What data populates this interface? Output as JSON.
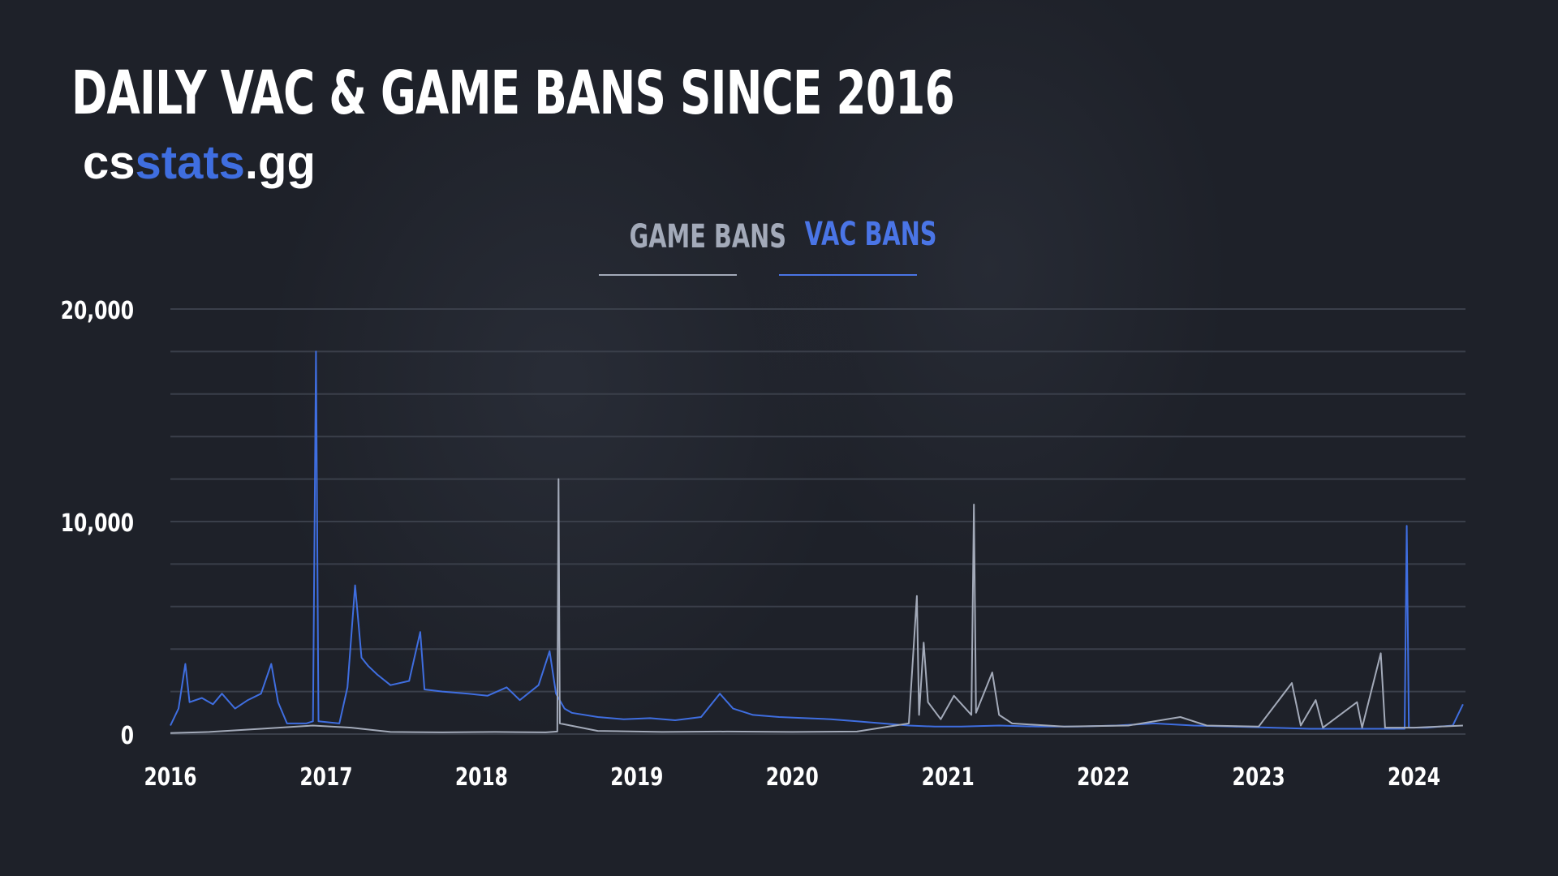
{
  "header": {
    "title": "DAILY VAC & GAME BANS SINCE 2016",
    "brand_prefix": "cs",
    "brand_accent": "stats",
    "brand_suffix": ".gg"
  },
  "tabs": [
    {
      "label": "GAME BANS",
      "active": false
    },
    {
      "label": "VAC BANS",
      "active": true
    }
  ],
  "colors": {
    "background": "#1e2129",
    "vac": "#3f6ee0",
    "game": "#a3aab9",
    "gridline": "#3a3f4a"
  },
  "chart_data": {
    "type": "line",
    "title": "DAILY VAC & GAME BANS SINCE 2016",
    "xlabel": "",
    "ylabel": "",
    "x_ticks": [
      "2016",
      "2017",
      "2018",
      "2019",
      "2020",
      "2021",
      "2022",
      "2023",
      "2024"
    ],
    "y_ticks": [
      0,
      10000,
      20000
    ],
    "y_tick_labels": [
      "0",
      "10,000",
      "20,000"
    ],
    "ylim": [
      0,
      20000
    ],
    "xlim": [
      "2016-01-01",
      "2024-05-01"
    ],
    "grid": true,
    "legend_position": "top-center",
    "series": [
      {
        "name": "VAC BANS",
        "color": "#3f6ee0",
        "points": [
          [
            "2016-01-01",
            400
          ],
          [
            "2016-01-20",
            1200
          ],
          [
            "2016-02-05",
            3300
          ],
          [
            "2016-02-15",
            1500
          ],
          [
            "2016-03-15",
            1700
          ],
          [
            "2016-04-10",
            1400
          ],
          [
            "2016-05-01",
            1900
          ],
          [
            "2016-06-01",
            1200
          ],
          [
            "2016-07-01",
            1600
          ],
          [
            "2016-08-01",
            1900
          ],
          [
            "2016-08-25",
            3300
          ],
          [
            "2016-09-10",
            1500
          ],
          [
            "2016-10-01",
            500
          ],
          [
            "2016-11-15",
            500
          ],
          [
            "2016-12-01",
            600
          ],
          [
            "2016-12-08",
            18000
          ],
          [
            "2016-12-14",
            600
          ],
          [
            "2017-02-01",
            500
          ],
          [
            "2017-02-20",
            2200
          ],
          [
            "2017-03-10",
            7000
          ],
          [
            "2017-03-25",
            3600
          ],
          [
            "2017-04-10",
            3200
          ],
          [
            "2017-05-01",
            2800
          ],
          [
            "2017-06-01",
            2300
          ],
          [
            "2017-07-15",
            2500
          ],
          [
            "2017-08-10",
            4800
          ],
          [
            "2017-08-20",
            2100
          ],
          [
            "2017-10-01",
            2000
          ],
          [
            "2017-12-01",
            1900
          ],
          [
            "2018-01-15",
            1800
          ],
          [
            "2018-03-01",
            2200
          ],
          [
            "2018-04-01",
            1600
          ],
          [
            "2018-05-15",
            2300
          ],
          [
            "2018-06-10",
            3900
          ],
          [
            "2018-06-25",
            1900
          ],
          [
            "2018-07-15",
            1200
          ],
          [
            "2018-08-01",
            1000
          ],
          [
            "2018-10-01",
            800
          ],
          [
            "2018-12-01",
            700
          ],
          [
            "2019-02-01",
            750
          ],
          [
            "2019-04-01",
            650
          ],
          [
            "2019-06-01",
            800
          ],
          [
            "2019-07-15",
            1900
          ],
          [
            "2019-08-15",
            1200
          ],
          [
            "2019-10-01",
            900
          ],
          [
            "2019-12-01",
            800
          ],
          [
            "2020-02-01",
            750
          ],
          [
            "2020-04-01",
            700
          ],
          [
            "2020-06-01",
            600
          ],
          [
            "2020-08-01",
            500
          ],
          [
            "2020-10-01",
            400
          ],
          [
            "2020-12-01",
            350
          ],
          [
            "2021-02-01",
            350
          ],
          [
            "2021-05-01",
            400
          ],
          [
            "2021-08-01",
            350
          ],
          [
            "2021-11-01",
            350
          ],
          [
            "2022-02-01",
            400
          ],
          [
            "2022-05-01",
            500
          ],
          [
            "2022-08-01",
            400
          ],
          [
            "2022-11-01",
            350
          ],
          [
            "2023-02-01",
            300
          ],
          [
            "2023-05-01",
            250
          ],
          [
            "2023-08-01",
            250
          ],
          [
            "2023-11-01",
            250
          ],
          [
            "2023-12-10",
            250
          ],
          [
            "2023-12-15",
            9800
          ],
          [
            "2023-12-20",
            300
          ],
          [
            "2024-02-01",
            300
          ],
          [
            "2024-04-01",
            400
          ],
          [
            "2024-04-25",
            1400
          ]
        ]
      },
      {
        "name": "GAME BANS",
        "color": "#a3aab9",
        "points": [
          [
            "2016-01-01",
            50
          ],
          [
            "2016-04-01",
            100
          ],
          [
            "2016-08-01",
            250
          ],
          [
            "2016-12-01",
            400
          ],
          [
            "2017-03-01",
            300
          ],
          [
            "2017-06-01",
            100
          ],
          [
            "2017-10-01",
            80
          ],
          [
            "2018-02-01",
            100
          ],
          [
            "2018-06-01",
            80
          ],
          [
            "2018-06-28",
            120
          ],
          [
            "2018-07-01",
            12000
          ],
          [
            "2018-07-04",
            500
          ],
          [
            "2018-10-01",
            150
          ],
          [
            "2019-03-01",
            100
          ],
          [
            "2019-08-01",
            120
          ],
          [
            "2020-01-01",
            100
          ],
          [
            "2020-06-01",
            120
          ],
          [
            "2020-10-01",
            500
          ],
          [
            "2020-10-20",
            6500
          ],
          [
            "2020-10-25",
            900
          ],
          [
            "2020-11-05",
            4300
          ],
          [
            "2020-11-15",
            1500
          ],
          [
            "2020-12-15",
            700
          ],
          [
            "2021-01-15",
            1800
          ],
          [
            "2021-02-25",
            900
          ],
          [
            "2021-03-03",
            10800
          ],
          [
            "2021-03-08",
            1000
          ],
          [
            "2021-04-15",
            2900
          ],
          [
            "2021-05-01",
            900
          ],
          [
            "2021-06-01",
            500
          ],
          [
            "2021-10-01",
            350
          ],
          [
            "2022-03-01",
            400
          ],
          [
            "2022-07-01",
            800
          ],
          [
            "2022-09-01",
            400
          ],
          [
            "2023-01-01",
            350
          ],
          [
            "2023-03-20",
            2400
          ],
          [
            "2023-04-10",
            400
          ],
          [
            "2023-05-15",
            1600
          ],
          [
            "2023-06-01",
            300
          ],
          [
            "2023-08-20",
            1500
          ],
          [
            "2023-09-01",
            300
          ],
          [
            "2023-10-15",
            3800
          ],
          [
            "2023-10-25",
            300
          ],
          [
            "2024-01-01",
            300
          ],
          [
            "2024-04-25",
            400
          ]
        ]
      }
    ]
  }
}
